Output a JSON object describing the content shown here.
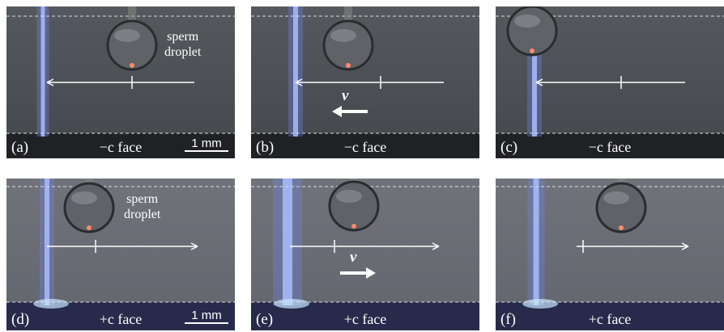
{
  "panels": [
    {
      "label": "(a)",
      "face": "−c face",
      "note": [
        "sperm",
        "droplet"
      ],
      "scale": "1 mm"
    },
    {
      "label": "(b)",
      "face": "−c face",
      "velocity": "v"
    },
    {
      "label": "(c)",
      "face": "−c face"
    },
    {
      "label": "(d)",
      "face": "+c face",
      "note": [
        "sperm",
        "droplet"
      ],
      "scale": "1 mm"
    },
    {
      "label": "(e)",
      "face": "+c face",
      "velocity": "v"
    },
    {
      "label": "(f)",
      "face": "+c face"
    }
  ]
}
